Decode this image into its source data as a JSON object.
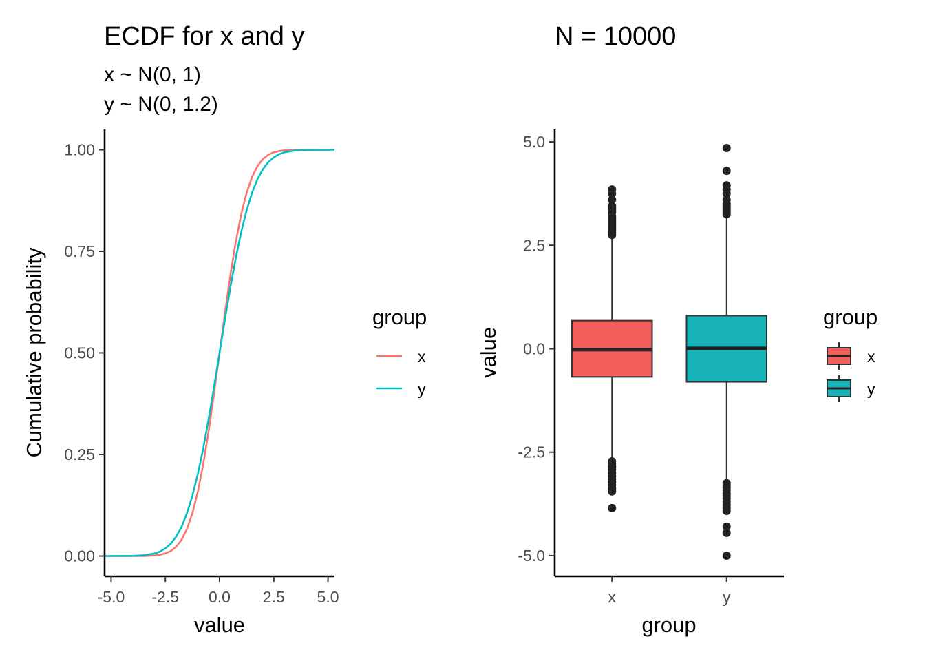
{
  "colors": {
    "x": "#F8766D",
    "y": "#00BFC4",
    "box_x": "#F35E5A",
    "box_y": "#17B3B7",
    "line": "#000000",
    "text": "#4d4d4d"
  },
  "chart_data": [
    {
      "type": "line",
      "title": "ECDF for x and y",
      "subtitle": [
        "x ~ N(0, 1)",
        "y ~ N(0, 1.2)"
      ],
      "xlabel": "value",
      "ylabel": "Cumulative probability",
      "xlim": [
        -5.3,
        5.3
      ],
      "ylim": [
        -0.05,
        1.05
      ],
      "xticks": [
        -5.0,
        -2.5,
        0.0,
        2.5,
        5.0
      ],
      "xtick_labels": [
        "-5.0",
        "-2.5",
        "0.0",
        "2.5",
        "5.0"
      ],
      "yticks": [
        0.0,
        0.25,
        0.5,
        0.75,
        1.0
      ],
      "ytick_labels": [
        "0.00",
        "0.25",
        "0.50",
        "0.75",
        "1.00"
      ],
      "grid": false,
      "legend": {
        "title": "group",
        "placement": "right",
        "entries": [
          "x",
          "y"
        ]
      },
      "series": [
        {
          "name": "x",
          "x": [
            -5.3,
            -3.9,
            -3.5,
            -3.0,
            -2.75,
            -2.5,
            -2.25,
            -2.0,
            -1.75,
            -1.5,
            -1.25,
            -1.0,
            -0.75,
            -0.5,
            -0.25,
            0.0,
            0.25,
            0.5,
            0.75,
            1.0,
            1.25,
            1.5,
            1.75,
            2.0,
            2.25,
            2.5,
            2.75,
            3.0,
            3.5,
            3.9,
            5.3
          ],
          "y": [
            0.0,
            0.0,
            0.0002,
            0.0013,
            0.003,
            0.0062,
            0.0122,
            0.0228,
            0.0401,
            0.0668,
            0.1056,
            0.1587,
            0.2266,
            0.3085,
            0.4013,
            0.5,
            0.5987,
            0.6915,
            0.7734,
            0.8413,
            0.8944,
            0.9332,
            0.9599,
            0.9772,
            0.9878,
            0.9938,
            0.997,
            0.9987,
            0.9998,
            1.0,
            1.0
          ]
        },
        {
          "name": "y",
          "x": [
            -5.3,
            -5.0,
            -4.5,
            -4.0,
            -3.5,
            -3.0,
            -2.75,
            -2.5,
            -2.25,
            -2.0,
            -1.75,
            -1.5,
            -1.25,
            -1.0,
            -0.75,
            -0.5,
            -0.25,
            0.0,
            0.25,
            0.5,
            0.75,
            1.0,
            1.25,
            1.5,
            1.75,
            2.0,
            2.25,
            2.5,
            2.75,
            3.0,
            3.5,
            4.0,
            4.9,
            5.3
          ],
          "y": [
            0.0,
            0.0,
            0.0001,
            0.0004,
            0.0018,
            0.0062,
            0.0109,
            0.0186,
            0.0304,
            0.0478,
            0.0721,
            0.1056,
            0.1488,
            0.2023,
            0.2659,
            0.3385,
            0.4173,
            0.5,
            0.5827,
            0.6615,
            0.7341,
            0.7977,
            0.8512,
            0.8944,
            0.9279,
            0.9522,
            0.9696,
            0.9814,
            0.9891,
            0.9938,
            0.9982,
            0.9996,
            1.0,
            1.0
          ]
        }
      ]
    },
    {
      "type": "box",
      "title": "N = 10000",
      "xlabel": "group",
      "ylabel": "value",
      "categories": [
        "x",
        "y"
      ],
      "ylim": [
        -5.5,
        5.3
      ],
      "yticks": [
        5.0,
        2.5,
        0.0,
        -2.5,
        -5.0
      ],
      "ytick_labels": [
        "5.0",
        "2.5",
        "0.0",
        "-2.5",
        "-5.0"
      ],
      "grid": false,
      "legend": {
        "title": "group",
        "placement": "right",
        "entries": [
          "x",
          "y"
        ]
      },
      "boxes": [
        {
          "name": "x",
          "q1": -0.68,
          "median": -0.02,
          "q3": 0.68,
          "whisker_low": -2.7,
          "whisker_high": 2.7,
          "outliers": [
            3.85,
            3.75,
            3.6,
            3.45,
            3.4,
            3.35,
            3.3,
            3.2,
            3.15,
            3.1,
            3.05,
            3.0,
            2.95,
            2.9,
            2.85,
            2.8,
            2.75,
            -2.72,
            -2.78,
            -2.85,
            -2.92,
            -3.0,
            -3.08,
            -3.15,
            -3.22,
            -3.3,
            -3.38,
            -3.45,
            -3.85
          ]
        },
        {
          "name": "y",
          "q1": -0.8,
          "median": 0.01,
          "q3": 0.8,
          "whisker_low": -3.2,
          "whisker_high": 3.2,
          "outliers": [
            4.85,
            4.3,
            3.95,
            3.85,
            3.75,
            3.6,
            3.5,
            3.45,
            3.4,
            3.35,
            3.3,
            3.25,
            -3.25,
            -3.3,
            -3.35,
            -3.42,
            -3.5,
            -3.55,
            -3.62,
            -3.7,
            -3.78,
            -3.85,
            -3.92,
            -4.3,
            -4.45,
            -5.0
          ]
        }
      ]
    }
  ]
}
